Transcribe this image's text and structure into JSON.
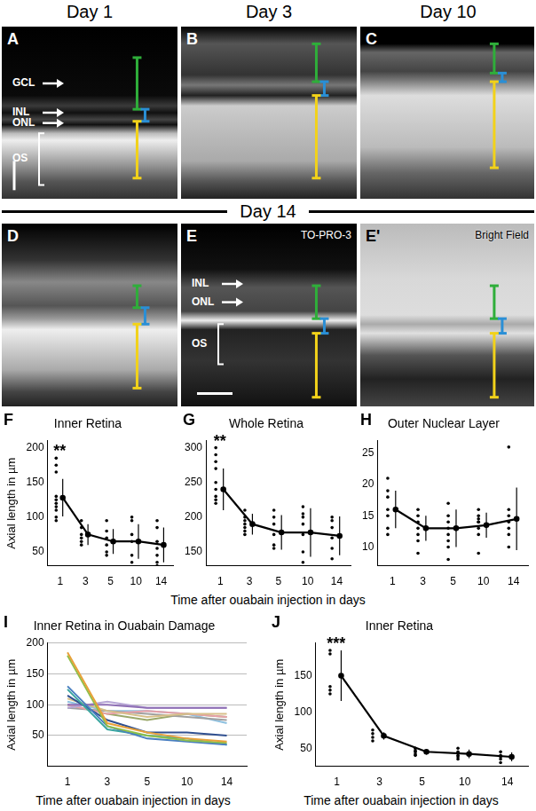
{
  "header": {
    "columns": [
      "Day 1",
      "Day 3",
      "Day 10"
    ],
    "divider": "Day 14"
  },
  "panels": [
    {
      "letter": "A",
      "labels": [
        "GCL",
        "INL",
        "ONL",
        "OS"
      ]
    },
    {
      "letter": "B"
    },
    {
      "letter": "C"
    },
    {
      "letter": "D"
    },
    {
      "letter": "E",
      "labels": [
        "INL",
        "ONL",
        "OS"
      ],
      "stain": "TO-PRO-3"
    },
    {
      "letter": "E'",
      "stain": "Bright Field"
    }
  ],
  "chart_data": [
    {
      "type": "scatter",
      "panel": "F",
      "title": "Inner Retina",
      "y_label": "Axial length in µm",
      "categories": [
        "1",
        "3",
        "5",
        "10",
        "14"
      ],
      "points": [
        [
          185,
          175,
          165,
          130,
          125,
          120,
          115,
          110,
          100,
          95
        ],
        [
          95,
          85,
          75,
          70,
          65,
          60
        ],
        [
          95,
          80,
          70,
          60,
          50,
          45
        ],
        [
          100,
          95,
          75,
          65,
          45,
          35
        ],
        [
          95,
          85,
          65,
          55,
          45,
          35,
          30
        ]
      ],
      "values": [
        128,
        75,
        65,
        65,
        60
      ],
      "error": [
        27,
        15,
        18,
        25,
        25
      ],
      "annotations": [
        {
          "category": "1",
          "text": "**"
        }
      ],
      "ylim": [
        30,
        210
      ],
      "yticks": [
        50,
        100,
        150,
        200
      ],
      "color": "#000000",
      "grid": false
    },
    {
      "type": "scatter",
      "panel": "G",
      "title": "Whole Retina",
      "x_label": "Time after ouabain injection in days",
      "categories": [
        "1",
        "3",
        "5",
        "10",
        "14"
      ],
      "points": [
        [
          300,
          290,
          280,
          270,
          250,
          240,
          230,
          225,
          220
        ],
        [
          210,
          200,
          195,
          190,
          185,
          180,
          175
        ],
        [
          210,
          200,
          190,
          175,
          160,
          155
        ],
        [
          215,
          205,
          200,
          190,
          175,
          150,
          135
        ],
        [
          200,
          195,
          185,
          170,
          155,
          140
        ]
      ],
      "values": [
        240,
        190,
        178,
        178,
        173
      ],
      "error": [
        30,
        15,
        25,
        35,
        28
      ],
      "annotations": [
        {
          "category": "1",
          "text": "**"
        }
      ],
      "ylim": [
        130,
        310
      ],
      "yticks": [
        150,
        200,
        250,
        300
      ],
      "color": "#000000",
      "grid": false
    },
    {
      "type": "scatter",
      "panel": "H",
      "title": "Outer Nuclear Layer",
      "categories": [
        "1",
        "3",
        "5",
        "10",
        "14"
      ],
      "points": [
        [
          21,
          19,
          18,
          16,
          15,
          13,
          12
        ],
        [
          16,
          15,
          14,
          13,
          12,
          11,
          9
        ],
        [
          17,
          15,
          14,
          13,
          12,
          11,
          10,
          8
        ],
        [
          16,
          15,
          14.5,
          14,
          14,
          13,
          12,
          9
        ],
        [
          26,
          16,
          15,
          14,
          13,
          12,
          10
        ]
      ],
      "values": [
        16,
        13,
        13,
        13.5,
        14.5
      ],
      "error": [
        3,
        2,
        3,
        2,
        5
      ],
      "ylim": [
        7,
        27
      ],
      "yticks": [
        10,
        15,
        20,
        25
      ],
      "color": "#000000",
      "grid": false
    },
    {
      "type": "line",
      "panel": "I",
      "title": "Inner Retina in Ouabain Damage",
      "y_label": "Axial length in µm",
      "x_label": "Time after ouabain injection in days",
      "categories": [
        "1",
        "3",
        "5",
        "10",
        "14"
      ],
      "series": [
        {
          "color": "#e8a13a",
          "values": [
            185,
            70,
            55,
            45,
            40
          ]
        },
        {
          "color": "#8fbf4a",
          "values": [
            180,
            65,
            50,
            42,
            38
          ]
        },
        {
          "color": "#4a7fc1",
          "values": [
            130,
            65,
            45,
            40,
            35
          ]
        },
        {
          "color": "#3aa6a0",
          "values": [
            125,
            60,
            50,
            45,
            35
          ]
        },
        {
          "color": "#2f4f8f",
          "values": [
            115,
            75,
            55,
            55,
            50
          ]
        },
        {
          "color": "#8e6fb5",
          "values": [
            100,
            100,
            95,
            95,
            95
          ]
        },
        {
          "color": "#b7a6d6",
          "values": [
            95,
            105,
            95,
            95,
            95
          ]
        },
        {
          "color": "#d8c08a",
          "values": [
            110,
            90,
            80,
            85,
            85
          ]
        },
        {
          "color": "#e7a0a8",
          "values": [
            100,
            85,
            90,
            85,
            80
          ]
        },
        {
          "color": "#a0a0a0",
          "values": [
            95,
            90,
            85,
            80,
            75
          ]
        },
        {
          "color": "#8ec1e0",
          "values": [
            105,
            90,
            90,
            85,
            70
          ]
        },
        {
          "color": "#9aa86a",
          "values": [
            100,
            85,
            75,
            85,
            80
          ]
        }
      ],
      "ylim": [
        0,
        200
      ],
      "yticks": [
        50,
        100,
        150,
        200
      ],
      "grid": true
    },
    {
      "type": "scatter",
      "panel": "J",
      "title": "Inner Retina",
      "y_label": "Axial length in µm",
      "x_label": "Time after ouabain injection in days",
      "categories": [
        "1",
        "3",
        "5",
        "10",
        "14"
      ],
      "points": [
        [
          185,
          180,
          135,
          130,
          125
        ],
        [
          75,
          70,
          65,
          60
        ],
        [
          50,
          47,
          45,
          42,
          40
        ],
        [
          50,
          45,
          40,
          38,
          35
        ],
        [
          45,
          40,
          38,
          35,
          30
        ]
      ],
      "values": [
        150,
        67,
        45,
        42,
        38
      ],
      "error": [
        35,
        5,
        4,
        6,
        6
      ],
      "annotations": [
        {
          "category": "1",
          "text": "***"
        }
      ],
      "ylim": [
        25,
        195
      ],
      "yticks": [
        50,
        100,
        150
      ],
      "color": "#000000",
      "grid": false
    }
  ]
}
